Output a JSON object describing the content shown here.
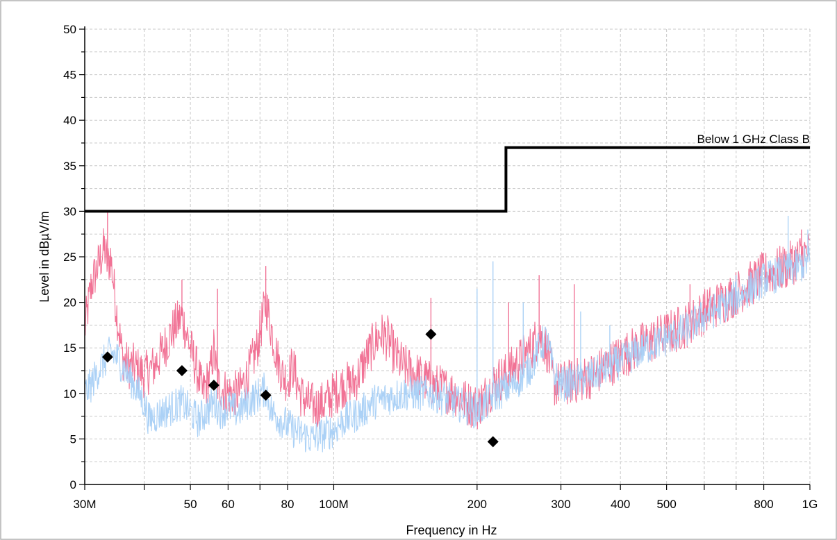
{
  "chart_data": {
    "type": "line",
    "title": "",
    "xlabel": "Frequency in Hz",
    "ylabel": "Level in dBµV/m",
    "x_scale": "log",
    "xlim": [
      30000000,
      1000000000
    ],
    "ylim": [
      0,
      50
    ],
    "grid": true,
    "colors": {
      "peak": "#f06a8f",
      "qp": "#a6cff5",
      "limit": "#000000",
      "marker": "#000000",
      "grid": "#c8c8c8",
      "frame": "#b0b0b0"
    },
    "x_ticks": [
      {
        "value": 30000000,
        "label": "30M"
      },
      {
        "value": 40000000,
        "label": ""
      },
      {
        "value": 50000000,
        "label": "50"
      },
      {
        "value": 60000000,
        "label": "60"
      },
      {
        "value": 70000000,
        "label": ""
      },
      {
        "value": 80000000,
        "label": "80"
      },
      {
        "value": 100000000,
        "label": "100M"
      },
      {
        "value": 200000000,
        "label": "200"
      },
      {
        "value": 300000000,
        "label": "300"
      },
      {
        "value": 400000000,
        "label": "400"
      },
      {
        "value": 500000000,
        "label": "500"
      },
      {
        "value": 600000000,
        "label": ""
      },
      {
        "value": 700000000,
        "label": ""
      },
      {
        "value": 800000000,
        "label": "800"
      },
      {
        "value": 1000000000,
        "label": "1G"
      }
    ],
    "y_ticks": [
      0,
      5,
      10,
      15,
      20,
      25,
      30,
      35,
      40,
      45,
      50
    ],
    "limit": {
      "name": "Below 1 GHz Class B",
      "points": [
        [
          30000000,
          30
        ],
        [
          230000000,
          30
        ],
        [
          230000000,
          37
        ],
        [
          1000000000,
          37
        ]
      ]
    },
    "series": [
      {
        "key": "peak",
        "points": [
          [
            30000000,
            17
          ],
          [
            31000000,
            22
          ],
          [
            32000000,
            24
          ],
          [
            33000000,
            26
          ],
          [
            33500000,
            24
          ],
          [
            34000000,
            25
          ],
          [
            35000000,
            19
          ],
          [
            36000000,
            14
          ],
          [
            37000000,
            13
          ],
          [
            38000000,
            13
          ],
          [
            40000000,
            12
          ],
          [
            42000000,
            13
          ],
          [
            44000000,
            15
          ],
          [
            46000000,
            17
          ],
          [
            48000000,
            18.5
          ],
          [
            50000000,
            15
          ],
          [
            52000000,
            12
          ],
          [
            53000000,
            10
          ],
          [
            55000000,
            12
          ],
          [
            56000000,
            15
          ],
          [
            57000000,
            11
          ],
          [
            60000000,
            10
          ],
          [
            63000000,
            10
          ],
          [
            66000000,
            12
          ],
          [
            69000000,
            15
          ],
          [
            72000000,
            20
          ],
          [
            74000000,
            17
          ],
          [
            76000000,
            14
          ],
          [
            78000000,
            12
          ],
          [
            80000000,
            11.5
          ],
          [
            82000000,
            13
          ],
          [
            85000000,
            10
          ],
          [
            88000000,
            9
          ],
          [
            92000000,
            8.5
          ],
          [
            96000000,
            9
          ],
          [
            100000000,
            10
          ],
          [
            105000000,
            11
          ],
          [
            110000000,
            11
          ],
          [
            115000000,
            13
          ],
          [
            120000000,
            15
          ],
          [
            125000000,
            16.5
          ],
          [
            130000000,
            16
          ],
          [
            135000000,
            14
          ],
          [
            140000000,
            13
          ],
          [
            150000000,
            12
          ],
          [
            160000000,
            11
          ],
          [
            170000000,
            10.5
          ],
          [
            180000000,
            10
          ],
          [
            190000000,
            9
          ],
          [
            200000000,
            8.5
          ],
          [
            210000000,
            10
          ],
          [
            220000000,
            11.5
          ],
          [
            230000000,
            12
          ],
          [
            240000000,
            13
          ],
          [
            250000000,
            14
          ],
          [
            260000000,
            15
          ],
          [
            270000000,
            16.5
          ],
          [
            280000000,
            15
          ],
          [
            290000000,
            11
          ],
          [
            300000000,
            11
          ],
          [
            330000000,
            11.5
          ],
          [
            350000000,
            12
          ],
          [
            400000000,
            14
          ],
          [
            450000000,
            15.5
          ],
          [
            500000000,
            16.5
          ],
          [
            550000000,
            17.5
          ],
          [
            600000000,
            19
          ],
          [
            650000000,
            20
          ],
          [
            700000000,
            21
          ],
          [
            750000000,
            22
          ],
          [
            800000000,
            23
          ],
          [
            850000000,
            23.5
          ],
          [
            900000000,
            24
          ],
          [
            950000000,
            25
          ],
          [
            1000000000,
            25.5
          ]
        ]
      },
      {
        "key": "qp",
        "points": [
          [
            30000000,
            10
          ],
          [
            31000000,
            11
          ],
          [
            32000000,
            12.5
          ],
          [
            33000000,
            13.5
          ],
          [
            34000000,
            14.5
          ],
          [
            35000000,
            14
          ],
          [
            36000000,
            13
          ],
          [
            37000000,
            12
          ],
          [
            38000000,
            11
          ],
          [
            39000000,
            10
          ],
          [
            40000000,
            9
          ],
          [
            41000000,
            7
          ],
          [
            42000000,
            7.5
          ],
          [
            44000000,
            8
          ],
          [
            46000000,
            8.5
          ],
          [
            48000000,
            9
          ],
          [
            50000000,
            8
          ],
          [
            52000000,
            7
          ],
          [
            54000000,
            8
          ],
          [
            56000000,
            9
          ],
          [
            58000000,
            8
          ],
          [
            60000000,
            8.5
          ],
          [
            63000000,
            8
          ],
          [
            66000000,
            9
          ],
          [
            70000000,
            10
          ],
          [
            72000000,
            10.5
          ],
          [
            74000000,
            8
          ],
          [
            78000000,
            7
          ],
          [
            82000000,
            6
          ],
          [
            86000000,
            5.5
          ],
          [
            90000000,
            5
          ],
          [
            95000000,
            5.5
          ],
          [
            100000000,
            6
          ],
          [
            105000000,
            7
          ],
          [
            110000000,
            7.5
          ],
          [
            115000000,
            8
          ],
          [
            120000000,
            9
          ],
          [
            130000000,
            9.5
          ],
          [
            140000000,
            10
          ],
          [
            150000000,
            10
          ],
          [
            160000000,
            10
          ],
          [
            170000000,
            9.5
          ],
          [
            180000000,
            9
          ],
          [
            190000000,
            8.5
          ],
          [
            200000000,
            8
          ],
          [
            210000000,
            9
          ],
          [
            220000000,
            10
          ],
          [
            230000000,
            10.5
          ],
          [
            240000000,
            11
          ],
          [
            250000000,
            12
          ],
          [
            260000000,
            13
          ],
          [
            270000000,
            15
          ],
          [
            280000000,
            16
          ],
          [
            290000000,
            12
          ],
          [
            300000000,
            11
          ],
          [
            330000000,
            11.5
          ],
          [
            350000000,
            12
          ],
          [
            400000000,
            13.5
          ],
          [
            450000000,
            15
          ],
          [
            500000000,
            16
          ],
          [
            550000000,
            17
          ],
          [
            600000000,
            18.5
          ],
          [
            650000000,
            19.5
          ],
          [
            700000000,
            20.5
          ],
          [
            750000000,
            21.5
          ],
          [
            800000000,
            22.5
          ],
          [
            850000000,
            23
          ],
          [
            900000000,
            23.5
          ],
          [
            950000000,
            24
          ],
          [
            1000000000,
            24.5
          ]
        ]
      }
    ],
    "spikes": [
      {
        "series": "peak",
        "x": 33500000,
        "y": 30
      },
      {
        "series": "peak",
        "x": 48000000,
        "y": 22.5
      },
      {
        "series": "peak",
        "x": 57000000,
        "y": 21.5
      },
      {
        "series": "peak",
        "x": 72000000,
        "y": 24
      },
      {
        "series": "peak",
        "x": 160000000,
        "y": 20.5
      },
      {
        "series": "peak",
        "x": 233000000,
        "y": 20
      },
      {
        "series": "peak",
        "x": 270000000,
        "y": 23
      },
      {
        "series": "peak",
        "x": 320000000,
        "y": 22
      },
      {
        "series": "peak",
        "x": 560000000,
        "y": 22
      },
      {
        "series": "peak",
        "x": 960000000,
        "y": 28
      },
      {
        "series": "qp",
        "x": 200000000,
        "y": 21.5
      },
      {
        "series": "qp",
        "x": 216000000,
        "y": 24.5
      },
      {
        "series": "qp",
        "x": 250000000,
        "y": 20
      },
      {
        "series": "qp",
        "x": 330000000,
        "y": 19
      },
      {
        "series": "qp",
        "x": 380000000,
        "y": 17.5
      },
      {
        "series": "qp",
        "x": 700000000,
        "y": 23
      },
      {
        "series": "qp",
        "x": 900000000,
        "y": 29.5
      },
      {
        "series": "qp",
        "x": 990000000,
        "y": 28
      }
    ],
    "markers": [
      {
        "x": 33500000,
        "y": 14
      },
      {
        "x": 48000000,
        "y": 12.5
      },
      {
        "x": 56000000,
        "y": 10.9
      },
      {
        "x": 72000000,
        "y": 9.8
      },
      {
        "x": 160000000,
        "y": 16.5
      },
      {
        "x": 216000000,
        "y": 4.7
      }
    ]
  }
}
